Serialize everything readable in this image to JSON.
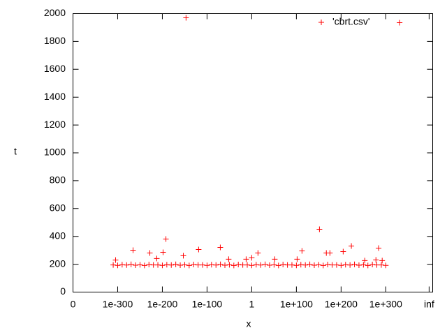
{
  "chart_data": {
    "type": "scatter",
    "xlabel": "x",
    "ylabel": "t",
    "x": [
      -310,
      -300,
      -290,
      -280,
      -270,
      -260,
      -250,
      -240,
      -230,
      -220,
      -210,
      -200,
      -190,
      -180,
      -170,
      -160,
      -150,
      -140,
      -130,
      -120,
      -110,
      -100,
      -90,
      -80,
      -70,
      -60,
      -50,
      -40,
      -30,
      -20,
      -10,
      0,
      10,
      20,
      30,
      40,
      50,
      60,
      70,
      80,
      90,
      100,
      110,
      120,
      130,
      140,
      150,
      160,
      170,
      180,
      190,
      200,
      210,
      220,
      230,
      240,
      250,
      260,
      270,
      280,
      290,
      300,
      -304.7,
      -265.6,
      -228,
      -212.5,
      -198.4,
      -192,
      -153,
      -147,
      -118.8,
      -70.3,
      -51.6,
      -12.5,
      0,
      14,
      51.6,
      101.6,
      112.5,
      151.6,
      167,
      175,
      204.7,
      223,
      253,
      278,
      284,
      292,
      331
    ],
    "series": [
      {
        "name": "'cbrt.csv'",
        "color": "#ff0000",
        "values": [
          195,
          192,
          197,
          194,
          199,
          193,
          196,
          191,
          198,
          195,
          195,
          192,
          197,
          194,
          199,
          193,
          196,
          191,
          198,
          195,
          195,
          192,
          197,
          194,
          199,
          193,
          196,
          191,
          198,
          195,
          195,
          192,
          197,
          194,
          199,
          193,
          196,
          191,
          198,
          195,
          195,
          192,
          197,
          194,
          199,
          193,
          196,
          191,
          198,
          195,
          195,
          192,
          197,
          194,
          199,
          193,
          196,
          191,
          198,
          195,
          195,
          192,
          230,
          301,
          281,
          241,
          286,
          381,
          261,
          1970,
          306,
          321,
          236,
          236,
          246,
          281,
          236,
          236,
          296,
          451,
          281,
          281,
          291,
          331,
          226,
          231,
          316,
          226,
          1935
        ]
      }
    ],
    "xlim": [
      -400,
      405
    ],
    "xticks": [
      {
        "value": -400,
        "label": "0"
      },
      {
        "value": -300,
        "label": "1e-300"
      },
      {
        "value": -200,
        "label": "1e-200"
      },
      {
        "value": -100,
        "label": "1e-100"
      },
      {
        "value": 0,
        "label": "1"
      },
      {
        "value": 100,
        "label": "1e+100"
      },
      {
        "value": 200,
        "label": "1e+200"
      },
      {
        "value": 300,
        "label": "1e+300"
      },
      {
        "value": 397,
        "label": "inf"
      }
    ],
    "ylim": [
      0,
      2000
    ],
    "yticks": [
      0,
      200,
      400,
      600,
      800,
      1000,
      1200,
      1400,
      1600,
      1800,
      2000
    ],
    "legend": "top-right"
  }
}
